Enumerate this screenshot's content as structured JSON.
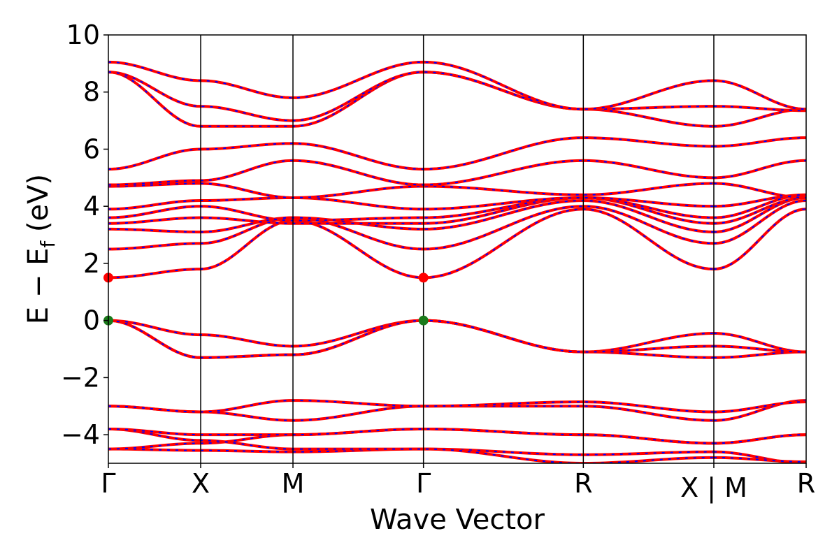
{
  "chart_data": {
    "type": "line",
    "title": "",
    "xlabel": "Wave Vector",
    "ylabel": "E − E",
    "ylabel_subscript": "f",
    "ylabel_unit": " (eV)",
    "ylim": [
      -5,
      10
    ],
    "yticks": [
      -4,
      -2,
      0,
      2,
      4,
      6,
      8,
      10
    ],
    "ytick_labels": [
      "−4",
      "−2",
      "0",
      "2",
      "4",
      "6",
      "8",
      "10"
    ],
    "kpath": [
      {
        "label": "Γ",
        "x": 0.0
      },
      {
        "label": "X",
        "x": 0.5
      },
      {
        "label": "M",
        "x": 1.0
      },
      {
        "label": "Γ",
        "x": 1.707
      },
      {
        "label": "R",
        "x": 2.573
      },
      {
        "label": "X | M",
        "x": 3.28
      },
      {
        "label": "R",
        "x": 3.78
      }
    ],
    "break_at": 3.28,
    "colors": {
      "band_primary": "#ff0000",
      "band_dashed": "#0000ff",
      "vbm_marker": "#1a7a1a",
      "cbm_marker": "#ff0000"
    },
    "markers": [
      {
        "kind": "cbm",
        "x": 0.0,
        "y": 1.5
      },
      {
        "kind": "cbm",
        "x": 1.707,
        "y": 1.5
      },
      {
        "kind": "vbm",
        "x": 0.0,
        "y": 0.0
      },
      {
        "kind": "vbm",
        "x": 1.707,
        "y": 0.0
      }
    ],
    "series": [
      {
        "values": [
          [
            0,
            -4.5
          ],
          [
            0.5,
            -4.55
          ],
          [
            1,
            -4.6
          ],
          [
            1.707,
            -4.5
          ],
          [
            2.573,
            -4.7
          ],
          [
            3.28,
            -4.6
          ],
          [
            3.78,
            -5.0
          ]
        ]
      },
      {
        "values": [
          [
            0,
            -4.5
          ],
          [
            0.5,
            -4.3
          ],
          [
            1,
            -4.0
          ],
          [
            1.707,
            -3.8
          ],
          [
            2.573,
            -4.0
          ],
          [
            3.28,
            -4.3
          ],
          [
            3.78,
            -4.0
          ]
        ]
      },
      {
        "values": [
          [
            0,
            -3.8
          ],
          [
            0.5,
            -4.2
          ],
          [
            1,
            -4.5
          ],
          [
            1.707,
            -4.5
          ],
          [
            2.573,
            -5.0
          ],
          [
            3.28,
            -4.8
          ],
          [
            3.78,
            -4.95
          ]
        ]
      },
      {
        "values": [
          [
            0,
            -3.8
          ],
          [
            0.5,
            -4.0
          ],
          [
            1,
            -4.0
          ],
          [
            1.707,
            -3.8
          ],
          [
            2.573,
            -4.0
          ],
          [
            3.28,
            -4.3
          ],
          [
            3.78,
            -4.0
          ]
        ]
      },
      {
        "values": [
          [
            0,
            -3.0
          ],
          [
            0.5,
            -3.2
          ],
          [
            1,
            -3.5
          ],
          [
            1.707,
            -3.0
          ],
          [
            2.573,
            -3.0
          ],
          [
            3.28,
            -3.5
          ],
          [
            3.78,
            -2.8
          ]
        ]
      },
      {
        "values": [
          [
            0,
            -3.0
          ],
          [
            0.5,
            -3.2
          ],
          [
            1,
            -2.8
          ],
          [
            1.707,
            -3.0
          ],
          [
            2.573,
            -2.85
          ],
          [
            3.28,
            -3.2
          ],
          [
            3.78,
            -2.85
          ]
        ]
      },
      {
        "values": [
          [
            0,
            0.0
          ],
          [
            0.5,
            -0.5
          ],
          [
            1,
            -0.9
          ],
          [
            1.707,
            0.0
          ],
          [
            2.573,
            -1.1
          ],
          [
            3.28,
            -0.45
          ],
          [
            3.78,
            -1.1
          ]
        ]
      },
      {
        "values": [
          [
            0,
            0.0
          ],
          [
            0.5,
            -1.3
          ],
          [
            1,
            -1.2
          ],
          [
            1.707,
            0.0
          ],
          [
            2.573,
            -1.1
          ],
          [
            3.28,
            -1.3
          ],
          [
            3.78,
            -1.1
          ]
        ]
      },
      {
        "values": [
          [
            0,
            0.0
          ],
          [
            0.5,
            -1.3
          ],
          [
            1,
            -1.2
          ],
          [
            1.707,
            0.0
          ],
          [
            2.573,
            -1.1
          ],
          [
            3.28,
            -0.9
          ],
          [
            3.78,
            -1.1
          ]
        ]
      },
      {
        "values": [
          [
            0,
            1.5
          ],
          [
            0.5,
            1.8
          ],
          [
            1,
            3.5
          ],
          [
            1.707,
            1.5
          ],
          [
            2.573,
            3.9
          ],
          [
            3.28,
            1.8
          ],
          [
            3.78,
            3.9
          ]
        ]
      },
      {
        "values": [
          [
            0,
            2.5
          ],
          [
            0.5,
            2.7
          ],
          [
            1,
            3.6
          ],
          [
            1.707,
            2.5
          ],
          [
            2.573,
            4.0
          ],
          [
            3.28,
            2.7
          ],
          [
            3.78,
            4.2
          ]
        ]
      },
      {
        "values": [
          [
            0,
            3.2
          ],
          [
            0.5,
            3.1
          ],
          [
            1,
            3.6
          ],
          [
            1.707,
            3.2
          ],
          [
            2.573,
            4.2
          ],
          [
            3.28,
            3.1
          ],
          [
            3.78,
            4.3
          ]
        ]
      },
      {
        "values": [
          [
            0,
            3.4
          ],
          [
            0.5,
            3.6
          ],
          [
            1,
            3.4
          ],
          [
            1.707,
            3.4
          ],
          [
            2.573,
            4.3
          ],
          [
            3.28,
            3.4
          ],
          [
            3.78,
            4.3
          ]
        ]
      },
      {
        "values": [
          [
            0,
            3.6
          ],
          [
            0.5,
            4.0
          ],
          [
            1,
            3.5
          ],
          [
            1.707,
            3.6
          ],
          [
            2.573,
            4.3
          ],
          [
            3.28,
            3.6
          ],
          [
            3.78,
            4.4
          ]
        ]
      },
      {
        "values": [
          [
            0,
            3.9
          ],
          [
            0.5,
            4.2
          ],
          [
            1,
            4.3
          ],
          [
            1.707,
            3.9
          ],
          [
            2.573,
            4.3
          ],
          [
            3.28,
            4.0
          ],
          [
            3.78,
            4.4
          ]
        ]
      },
      {
        "values": [
          [
            0,
            4.7
          ],
          [
            0.5,
            4.8
          ],
          [
            1,
            4.3
          ],
          [
            1.707,
            4.7
          ],
          [
            2.573,
            4.4
          ],
          [
            3.28,
            4.8
          ],
          [
            3.78,
            4.3
          ]
        ]
      },
      {
        "values": [
          [
            0,
            4.75
          ],
          [
            0.5,
            4.9
          ],
          [
            1,
            5.6
          ],
          [
            1.707,
            4.75
          ],
          [
            2.573,
            5.6
          ],
          [
            3.28,
            5.0
          ],
          [
            3.78,
            5.6
          ]
        ]
      },
      {
        "values": [
          [
            0,
            5.3
          ],
          [
            0.5,
            6.0
          ],
          [
            1,
            6.2
          ],
          [
            1.707,
            5.3
          ],
          [
            2.573,
            6.4
          ],
          [
            3.28,
            6.1
          ],
          [
            3.78,
            6.4
          ]
        ]
      },
      {
        "values": [
          [
            0,
            8.7
          ],
          [
            0.5,
            6.8
          ],
          [
            1,
            6.8
          ],
          [
            1.707,
            8.7
          ],
          [
            2.573,
            7.4
          ],
          [
            3.28,
            6.8
          ],
          [
            3.78,
            7.4
          ]
        ]
      },
      {
        "values": [
          [
            0,
            8.7
          ],
          [
            0.5,
            7.5
          ],
          [
            1,
            7.0
          ],
          [
            1.707,
            8.7
          ],
          [
            2.573,
            7.4
          ],
          [
            3.28,
            7.5
          ],
          [
            3.78,
            7.35
          ]
        ]
      },
      {
        "values": [
          [
            0,
            9.05
          ],
          [
            0.5,
            8.4
          ],
          [
            1,
            7.8
          ],
          [
            1.707,
            9.05
          ],
          [
            2.573,
            7.4
          ],
          [
            3.28,
            8.4
          ],
          [
            3.78,
            7.4
          ]
        ]
      }
    ]
  }
}
